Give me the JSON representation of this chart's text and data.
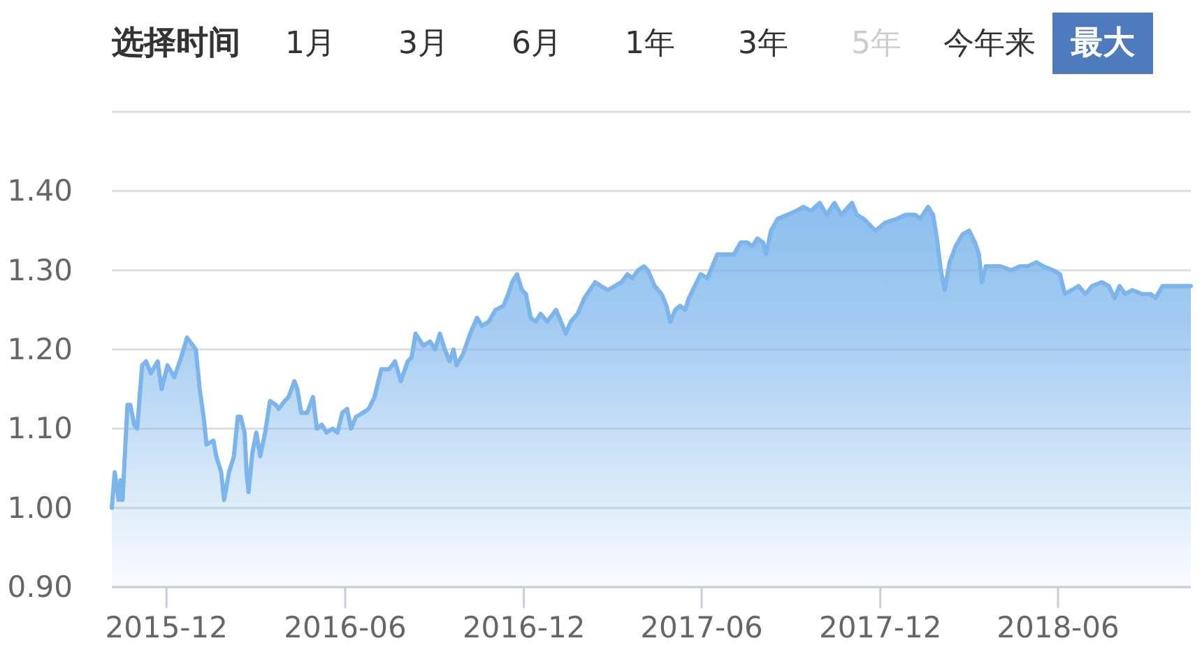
{
  "chart_data": {
    "type": "area",
    "title": "选择时间",
    "annotations": [
      "1月",
      "3月",
      "6月",
      "1年",
      "3年",
      "5年",
      "今年来",
      "最大"
    ],
    "color": "#7cb5ec",
    "grid": "y",
    "xlim": [
      "2015-10-06",
      "2018-10-15"
    ],
    "xticks": [
      "2015-12",
      "2016-06",
      "2016-12",
      "2017-06",
      "2017-12",
      "2018-06"
    ],
    "ylim": [
      0.9,
      1.5
    ],
    "yticks": [
      {
        "value": 0.9,
        "label": "0.90"
      },
      {
        "value": 1.0,
        "label": "1.00"
      },
      {
        "value": 1.1,
        "label": "1.10"
      },
      {
        "value": 1.2,
        "label": "1.20"
      },
      {
        "value": 1.3,
        "label": "1.30"
      },
      {
        "value": 1.4,
        "label": "1.40"
      },
      {
        "value": 1.5,
        "label": null
      }
    ],
    "x": [
      "2015-10-06",
      "2015-10-09",
      "2015-10-13",
      "2015-10-15",
      "2015-10-17",
      "2015-10-22",
      "2015-10-25",
      "2015-10-29",
      "2015-11-01",
      "2015-11-06",
      "2015-11-10",
      "2015-11-15",
      "2015-11-22",
      "2015-11-26",
      "2015-12-02",
      "2015-12-09",
      "2015-12-16",
      "2015-12-22",
      "2015-12-28",
      "2015-12-31",
      "2016-01-04",
      "2016-01-08",
      "2016-01-11",
      "2016-01-18",
      "2016-01-21",
      "2016-01-26",
      "2016-01-29",
      "2016-02-03",
      "2016-02-08",
      "2016-02-12",
      "2016-02-15",
      "2016-02-19",
      "2016-02-21",
      "2016-02-23",
      "2016-02-27",
      "2016-03-02",
      "2016-03-06",
      "2016-03-11",
      "2016-03-16",
      "2016-03-22",
      "2016-03-25",
      "2016-03-31",
      "2016-04-04",
      "2016-04-10",
      "2016-04-13",
      "2016-04-17",
      "2016-04-23",
      "2016-04-29",
      "2016-05-03",
      "2016-05-08",
      "2016-05-13",
      "2016-05-19",
      "2016-05-24",
      "2016-05-29",
      "2016-06-03",
      "2016-06-07",
      "2016-06-12",
      "2016-06-19",
      "2016-06-25",
      "2016-07-01",
      "2016-07-08",
      "2016-07-16",
      "2016-07-22",
      "2016-07-28",
      "2016-08-04",
      "2016-08-08",
      "2016-08-12",
      "2016-08-20",
      "2016-08-27",
      "2016-09-01",
      "2016-09-06",
      "2016-09-11",
      "2016-09-16",
      "2016-09-20",
      "2016-09-23",
      "2016-09-30",
      "2016-10-07",
      "2016-10-14",
      "2016-10-19",
      "2016-10-26",
      "2016-11-02",
      "2016-11-10",
      "2016-11-15",
      "2016-11-19",
      "2016-11-24",
      "2016-11-29",
      "2016-12-03",
      "2016-12-08",
      "2016-12-13",
      "2016-12-18",
      "2016-12-25",
      "2017-01-03",
      "2017-01-08",
      "2017-01-13",
      "2017-01-18",
      "2017-01-25",
      "2017-02-01",
      "2017-02-12",
      "2017-02-18",
      "2017-02-25",
      "2017-03-04",
      "2017-03-11",
      "2017-03-17",
      "2017-03-22",
      "2017-03-28",
      "2017-04-03",
      "2017-04-07",
      "2017-04-14",
      "2017-04-21",
      "2017-04-26",
      "2017-04-30",
      "2017-05-05",
      "2017-05-10",
      "2017-05-15",
      "2017-05-19",
      "2017-05-27",
      "2017-05-31",
      "2017-06-07",
      "2017-06-12",
      "2017-06-17",
      "2017-06-27",
      "2017-07-04",
      "2017-07-11",
      "2017-07-18",
      "2017-07-23",
      "2017-07-28",
      "2017-08-03",
      "2017-08-06",
      "2017-08-11",
      "2017-08-18",
      "2017-08-28",
      "2017-09-06",
      "2017-09-13",
      "2017-09-21",
      "2017-09-30",
      "2017-10-07",
      "2017-10-15",
      "2017-10-22",
      "2017-11-02",
      "2017-11-07",
      "2017-11-14",
      "2017-11-22",
      "2017-11-26",
      "2017-12-06",
      "2017-12-18",
      "2017-12-27",
      "2018-01-06",
      "2018-01-11",
      "2018-01-19",
      "2018-01-24",
      "2018-01-28",
      "2018-02-01",
      "2018-02-05",
      "2018-02-10",
      "2018-02-16",
      "2018-02-23",
      "2018-03-02",
      "2018-03-08",
      "2018-03-12",
      "2018-03-15",
      "2018-03-19",
      "2018-03-26",
      "2018-04-03",
      "2018-04-14",
      "2018-04-23",
      "2018-05-01",
      "2018-05-10",
      "2018-05-17",
      "2018-05-27",
      "2018-06-03",
      "2018-06-08",
      "2018-06-15",
      "2018-06-22",
      "2018-06-29",
      "2018-07-06",
      "2018-07-16",
      "2018-07-23",
      "2018-07-29",
      "2018-08-03",
      "2018-08-09",
      "2018-08-16",
      "2018-08-26",
      "2018-09-04",
      "2018-09-09",
      "2018-09-16",
      "2018-09-28",
      "2018-10-15"
    ],
    "values": [
      1.0,
      1.045,
      1.01,
      1.035,
      1.01,
      1.13,
      1.13,
      1.105,
      1.1,
      1.18,
      1.185,
      1.17,
      1.185,
      1.15,
      1.18,
      1.165,
      1.19,
      1.215,
      1.205,
      1.2,
      1.15,
      1.115,
      1.08,
      1.085,
      1.065,
      1.045,
      1.01,
      1.045,
      1.065,
      1.115,
      1.115,
      1.095,
      1.045,
      1.02,
      1.07,
      1.095,
      1.065,
      1.095,
      1.135,
      1.13,
      1.125,
      1.135,
      1.14,
      1.16,
      1.15,
      1.12,
      1.12,
      1.14,
      1.1,
      1.105,
      1.095,
      1.1,
      1.095,
      1.12,
      1.125,
      1.1,
      1.115,
      1.12,
      1.125,
      1.14,
      1.175,
      1.175,
      1.185,
      1.16,
      1.185,
      1.19,
      1.22,
      1.205,
      1.21,
      1.2,
      1.22,
      1.2,
      1.185,
      1.2,
      1.18,
      1.195,
      1.22,
      1.24,
      1.23,
      1.235,
      1.25,
      1.255,
      1.27,
      1.285,
      1.295,
      1.275,
      1.27,
      1.24,
      1.235,
      1.245,
      1.235,
      1.25,
      1.235,
      1.22,
      1.235,
      1.245,
      1.265,
      1.285,
      1.28,
      1.275,
      1.28,
      1.285,
      1.295,
      1.29,
      1.3,
      1.305,
      1.3,
      1.28,
      1.27,
      1.255,
      1.235,
      1.25,
      1.255,
      1.25,
      1.265,
      1.285,
      1.295,
      1.29,
      1.305,
      1.32,
      1.32,
      1.32,
      1.335,
      1.335,
      1.33,
      1.34,
      1.335,
      1.32,
      1.35,
      1.365,
      1.37,
      1.375,
      1.38,
      1.375,
      1.385,
      1.37,
      1.385,
      1.37,
      1.385,
      1.37,
      1.365,
      1.355,
      1.35,
      1.36,
      1.365,
      1.37,
      1.37,
      1.365,
      1.38,
      1.37,
      1.34,
      1.3,
      1.275,
      1.31,
      1.33,
      1.345,
      1.35,
      1.335,
      1.32,
      1.285,
      1.305,
      1.305,
      1.305,
      1.3,
      1.305,
      1.305,
      1.31,
      1.305,
      1.3,
      1.295,
      1.27,
      1.275,
      1.28,
      1.27,
      1.28,
      1.285,
      1.28,
      1.265,
      1.28,
      1.27,
      1.275,
      1.27,
      1.27,
      1.265,
      1.28,
      1.28,
      1.28
    ]
  }
}
